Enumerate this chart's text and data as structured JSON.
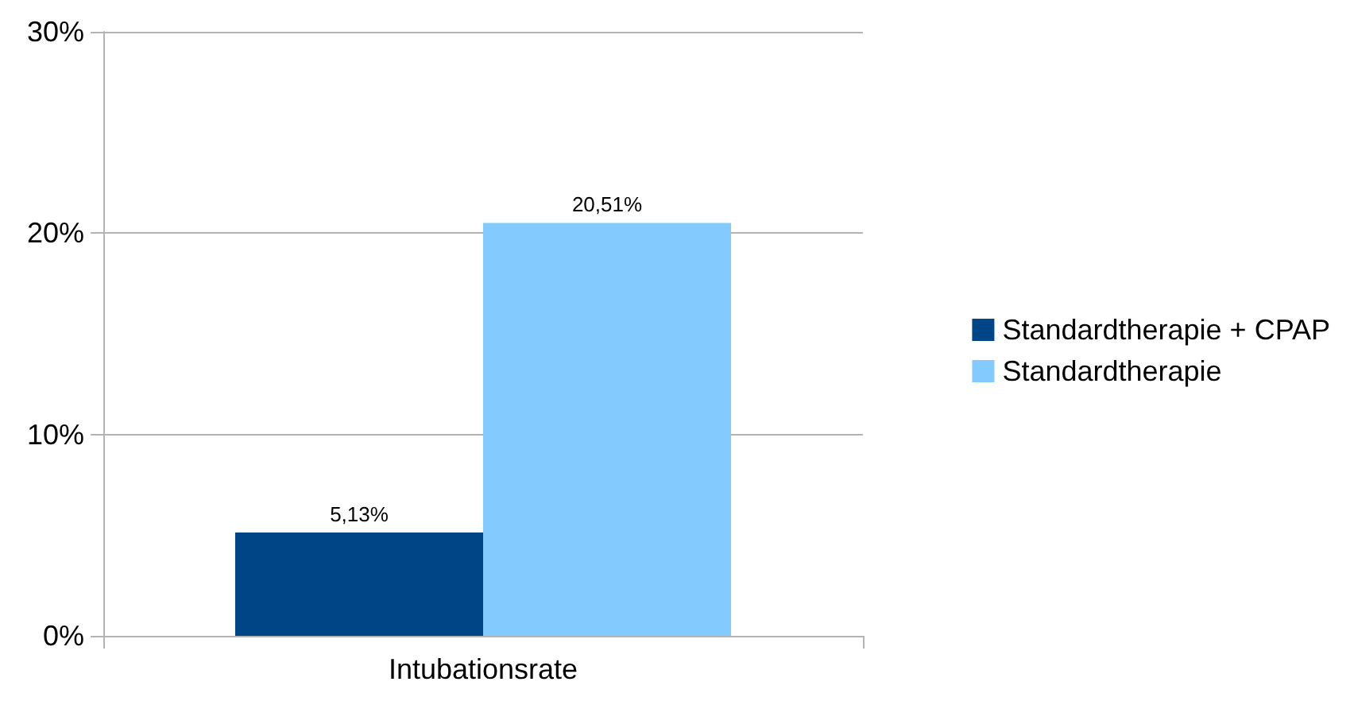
{
  "chart_data": {
    "type": "bar",
    "categories": [
      "Intubationsrate"
    ],
    "series": [
      {
        "name": "Standardtherapie + CPAP",
        "color": "#004586",
        "values": [
          5.13
        ],
        "value_labels": [
          "5,13%"
        ]
      },
      {
        "name": "Standardtherapie",
        "color": "#83caff",
        "values": [
          20.51
        ],
        "value_labels": [
          "20,51%"
        ]
      }
    ],
    "ylim": [
      0,
      30
    ],
    "yticks": [
      {
        "value": 0,
        "label": "0%"
      },
      {
        "value": 10,
        "label": "10%"
      },
      {
        "value": 20,
        "label": "20%"
      },
      {
        "value": 30,
        "label": "30%"
      }
    ],
    "grid": "y",
    "legend": "right"
  }
}
